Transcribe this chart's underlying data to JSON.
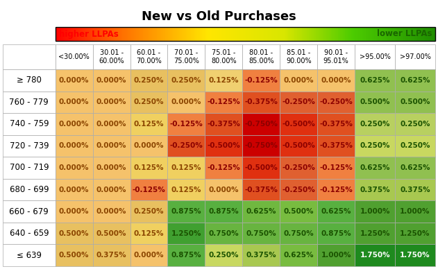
{
  "title": "New vs Old Purchases",
  "legend_left": "higher LLPAs",
  "legend_right": "lower LLPAs",
  "col_headers": [
    "<30.00%",
    "30.01 -\n60.00%",
    "60.01 -\n70.00%",
    "70.01 -\n75.00%",
    "75.01 -\n80.00%",
    "80.01 -\n85.00%",
    "85.01 -\n90.00%",
    "90.01 -\n95.01%",
    ">95.00%",
    ">97.00%"
  ],
  "row_headers": [
    "≥ 780",
    "760 - 779",
    "740 - 759",
    "720 - 739",
    "700 - 719",
    "680 - 699",
    "660 - 679",
    "640 - 659",
    "≤ 639"
  ],
  "values": [
    [
      0.0,
      0.0,
      0.25,
      0.25,
      0.125,
      -0.125,
      0.0,
      0.0,
      0.625,
      0.625
    ],
    [
      0.0,
      0.0,
      0.25,
      0.0,
      -0.125,
      -0.375,
      -0.25,
      -0.25,
      0.5,
      0.5
    ],
    [
      0.0,
      0.0,
      0.125,
      -0.125,
      -0.375,
      -0.75,
      -0.5,
      -0.375,
      0.25,
      0.25
    ],
    [
      0.0,
      0.0,
      0.0,
      -0.25,
      -0.5,
      -0.75,
      -0.5,
      -0.375,
      0.25,
      0.25
    ],
    [
      0.0,
      0.0,
      0.125,
      0.125,
      -0.125,
      -0.5,
      -0.25,
      -0.125,
      0.625,
      0.625
    ],
    [
      0.0,
      0.0,
      -0.125,
      0.125,
      0.0,
      -0.375,
      -0.25,
      -0.125,
      0.375,
      0.375
    ],
    [
      0.0,
      0.0,
      0.25,
      0.875,
      0.875,
      0.625,
      0.5,
      0.625,
      1.0,
      1.0
    ],
    [
      0.5,
      0.5,
      0.125,
      1.25,
      0.75,
      0.75,
      0.75,
      0.875,
      1.25,
      1.25
    ],
    [
      0.5,
      0.375,
      0.0,
      0.875,
      0.25,
      0.375,
      0.625,
      1.0,
      1.75,
      1.75
    ]
  ],
  "cell_colors": [
    [
      "#F5C26B",
      "#F5C26B",
      "#E8C060",
      "#E8C060",
      "#F0D070",
      "#F08040",
      "#F5C26B",
      "#F5C26B",
      "#90C050",
      "#90C050"
    ],
    [
      "#F5C26B",
      "#F5C26B",
      "#E8C060",
      "#F5C26B",
      "#F08040",
      "#E05020",
      "#E06030",
      "#E06030",
      "#90C050",
      "#90C050"
    ],
    [
      "#F5C26B",
      "#F5C26B",
      "#F0D060",
      "#F08040",
      "#E05020",
      "#CC0000",
      "#E03010",
      "#E05020",
      "#B8D060",
      "#B8D060"
    ],
    [
      "#F5C26B",
      "#F5C26B",
      "#F5C26B",
      "#E05020",
      "#E03010",
      "#CC0000",
      "#E03010",
      "#E05020",
      "#C8D860",
      "#C8D860"
    ],
    [
      "#F5C26B",
      "#F5C26B",
      "#F0D060",
      "#F0D060",
      "#F08040",
      "#E03010",
      "#E06030",
      "#F08040",
      "#90C050",
      "#90C050"
    ],
    [
      "#F5C26B",
      "#F5C26B",
      "#F08040",
      "#F0D060",
      "#F5C26B",
      "#E05020",
      "#E06030",
      "#F08040",
      "#A8C850",
      "#A8C850"
    ],
    [
      "#F5C26B",
      "#F5C26B",
      "#E8C060",
      "#58B040",
      "#58B040",
      "#70B840",
      "#78BC40",
      "#58B040",
      "#50A030",
      "#50A030"
    ],
    [
      "#E8C060",
      "#E8C060",
      "#F0D060",
      "#40A030",
      "#68B440",
      "#68B440",
      "#68B440",
      "#58B040",
      "#50A030",
      "#50A030"
    ],
    [
      "#E8C060",
      "#E8C060",
      "#F5C26B",
      "#58B040",
      "#C8D860",
      "#A8C850",
      "#78BC40",
      "#50A030",
      "#1E8A1E",
      "#1E8A1E"
    ]
  ],
  "text_colors": [
    [
      "#8B4500",
      "#8B4500",
      "#8B4500",
      "#8B4500",
      "#8B4500",
      "#8B0000",
      "#8B4500",
      "#8B4500",
      "#1A5200",
      "#1A5200"
    ],
    [
      "#8B4500",
      "#8B4500",
      "#8B4500",
      "#8B4500",
      "#8B0000",
      "#8B0000",
      "#8B0000",
      "#8B0000",
      "#1A5200",
      "#1A5200"
    ],
    [
      "#8B4500",
      "#8B4500",
      "#8B4500",
      "#8B0000",
      "#8B0000",
      "#8B0000",
      "#8B0000",
      "#8B0000",
      "#1A5200",
      "#1A5200"
    ],
    [
      "#8B4500",
      "#8B4500",
      "#8B4500",
      "#8B0000",
      "#8B0000",
      "#8B0000",
      "#8B0000",
      "#8B0000",
      "#1A5200",
      "#1A5200"
    ],
    [
      "#8B4500",
      "#8B4500",
      "#8B4500",
      "#8B4500",
      "#8B0000",
      "#8B0000",
      "#8B0000",
      "#8B0000",
      "#1A5200",
      "#1A5200"
    ],
    [
      "#8B4500",
      "#8B4500",
      "#8B0000",
      "#8B4500",
      "#8B4500",
      "#8B0000",
      "#8B0000",
      "#8B0000",
      "#1A5200",
      "#1A5200"
    ],
    [
      "#8B4500",
      "#8B4500",
      "#8B4500",
      "#1A5200",
      "#1A5200",
      "#1A5200",
      "#1A5200",
      "#1A5200",
      "#1A5200",
      "#1A5200"
    ],
    [
      "#8B4500",
      "#8B4500",
      "#8B4500",
      "#1A5200",
      "#1A5200",
      "#1A5200",
      "#1A5200",
      "#1A5200",
      "#1A5200",
      "#1A5200"
    ],
    [
      "#8B4500",
      "#8B4500",
      "#8B4500",
      "#1A5200",
      "#1A5200",
      "#1A5200",
      "#1A5200",
      "#1A5200",
      "#ffffff",
      "#ffffff"
    ]
  ],
  "title_fontsize": 13,
  "header_fontsize": 7,
  "cell_fontsize": 7.5,
  "row_header_fontsize": 8.5,
  "fig_width": 6.31,
  "fig_height": 3.88,
  "dpi": 100
}
